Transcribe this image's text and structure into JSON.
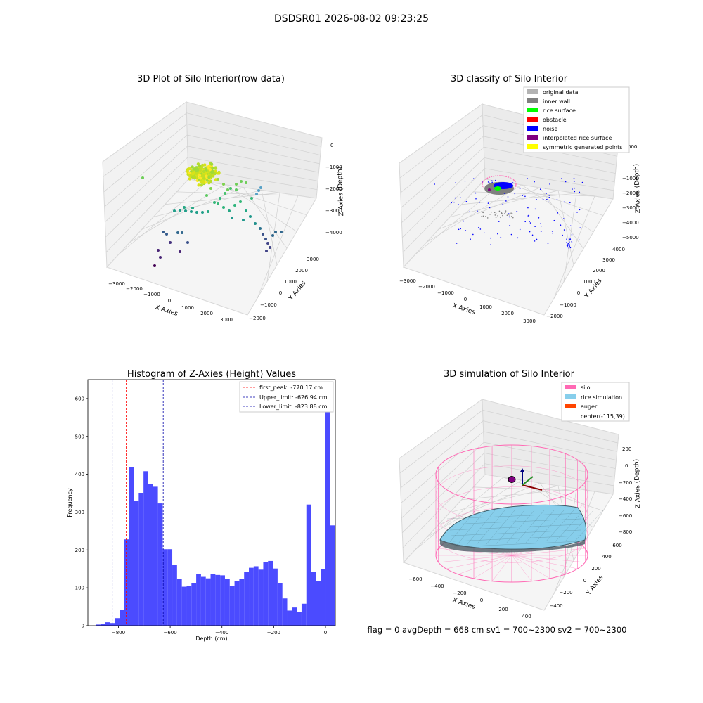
{
  "figure": {
    "suptitle": "DSDSR01 2026-08-02 09:23:25",
    "status_line": "flag = 0     avgDepth = 668 cm  sv1 = 700~2300  sv2 = 700~2300"
  },
  "colors": {
    "histogram_bar": "#4b4bff",
    "peak_line": "#ff0000",
    "limit_line": "#0000aa",
    "silo": "#ff69b4",
    "rice_simulation": "#87ceeb",
    "auger": "#ff4500",
    "original_data": "#b3b3b3",
    "inner_wall": "#808080",
    "rice_surface": "#00ff00",
    "obstacle": "#ff0000",
    "noise": "#0000ff",
    "interpolated_rice_surface": "#800080",
    "symmetric_generated_points": "#ffff00"
  },
  "chart_data": [
    {
      "type": "scatter",
      "projection": "3d",
      "title": "3D Plot of Silo Interior(row data)",
      "xlabel": "X Axies",
      "ylabel": "Y Axies",
      "zlabel": "Z Axies (Depth)",
      "x_ticks": [
        "−3000",
        "−2000",
        "−1000",
        "0",
        "1000",
        "2000",
        "3000"
      ],
      "y_ticks": [
        "−2000",
        "−1000",
        "0",
        "1000",
        "2000",
        "3000"
      ],
      "z_ticks": [
        "0",
        "−1000",
        "−2000",
        "−3000",
        "−4000"
      ],
      "colormap": "viridis"
    },
    {
      "type": "scatter",
      "projection": "3d",
      "title": "3D classify of Silo Interior",
      "xlabel": "X Axies",
      "ylabel": "Y Axies",
      "zlabel": "Z Axies (Depth)",
      "x_ticks": [
        "−3000",
        "−2000",
        "−1000",
        "0",
        "1000",
        "2000",
        "3000"
      ],
      "y_ticks": [
        "−2000",
        "−1000",
        "0",
        "1000",
        "2000",
        "3000",
        "4000"
      ],
      "z_ticks": [
        "000",
        "−1000",
        "−2000",
        "−3000",
        "−4000",
        "−5000"
      ],
      "legend": [
        "original data",
        "inner wall",
        "rice surface",
        "obstacle",
        "noise",
        "interpolated rice surface",
        "symmetric generated points"
      ],
      "legend_position": "upper-right"
    },
    {
      "type": "bar",
      "subtype": "histogram",
      "title": "Histogram of Z-Axies (Height) Values",
      "xlabel": "Depth (cm)",
      "ylabel": "Frequency",
      "xlim": [
        -918,
        38
      ],
      "ylim": [
        0,
        650
      ],
      "x_ticks": [
        -800,
        -600,
        -400,
        -200,
        0
      ],
      "x_tick_labels": [
        "−800",
        "−600",
        "−400",
        "−200",
        "0"
      ],
      "y_ticks": [
        0,
        100,
        200,
        300,
        400,
        500,
        600
      ],
      "bin_width": 18.5,
      "bin_start": -888,
      "values": [
        3,
        5,
        9,
        7,
        20,
        42,
        228,
        418,
        330,
        351,
        408,
        374,
        367,
        323,
        202,
        202,
        160,
        123,
        103,
        105,
        113,
        136,
        129,
        125,
        136,
        134,
        133,
        124,
        104,
        117,
        124,
        142,
        153,
        157,
        148,
        169,
        171,
        151,
        112,
        72,
        40,
        48,
        37,
        58,
        320,
        143,
        118,
        150,
        618,
        265
      ],
      "vlines": [
        {
          "label": "first_peak: -770.17 cm",
          "x": -770.17,
          "color": "red"
        },
        {
          "label": "Upper_limit: -626.94 cm",
          "x": -626.94,
          "color": "blue"
        },
        {
          "label": "Lower_limit: -823.88 cm",
          "x": -823.88,
          "color": "blue"
        }
      ],
      "legend_position": "upper-right"
    },
    {
      "type": "surface",
      "projection": "3d",
      "title": "3D simulation of Silo Interior",
      "xlabel": "X Axies",
      "ylabel": "Y Axies",
      "zlabel": "Z Axies (Depth)",
      "x_ticks": [
        "−600",
        "−400",
        "−200",
        "0",
        "200",
        "400"
      ],
      "y_ticks": [
        "−400",
        "−200",
        "0",
        "200",
        "400",
        "600"
      ],
      "z_ticks": [
        "200",
        "0",
        "−200",
        "−400",
        "−600",
        "−800"
      ],
      "legend": [
        "silo",
        "rice simulation",
        "auger",
        "center(-115,39)"
      ],
      "legend_position": "upper-right"
    }
  ]
}
